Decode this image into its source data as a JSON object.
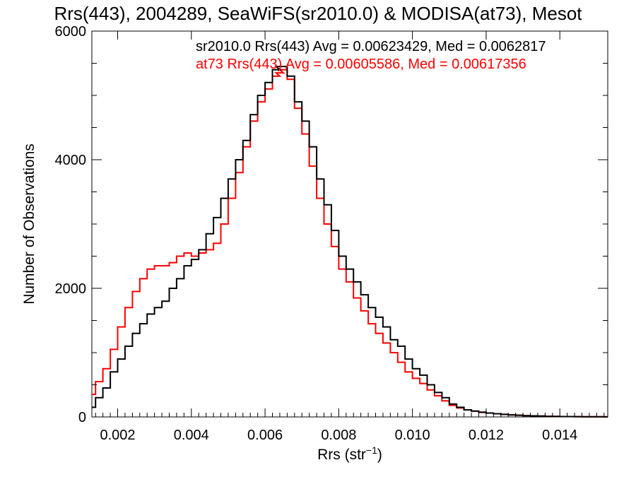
{
  "chart_data": {
    "type": "line",
    "title": "Rrs(443), 2004289, SeaWiFS(sr2010.0) & MODISA(at73), Mesot",
    "xlabel_main": "Rrs (str",
    "xlabel_sup": "−1",
    "xlabel_close": ")",
    "ylabel": "Number of Observations",
    "xlim": [
      0.0013,
      0.0153
    ],
    "ylim": [
      0,
      6000
    ],
    "xticks": [
      0.002,
      0.004,
      0.006,
      0.008,
      0.01,
      0.012,
      0.014
    ],
    "xtick_labels": [
      "0.002",
      "0.004",
      "0.006",
      "0.008",
      "0.010",
      "0.012",
      "0.014"
    ],
    "yticks": [
      0,
      2000,
      4000,
      6000
    ],
    "ytick_labels": [
      "0",
      "2000",
      "4000",
      "6000"
    ],
    "step_histogram": true,
    "grid": false,
    "series": [
      {
        "name": "sr2010.0",
        "legend": "sr2010.0 Rrs(443) Avg = 0.00623429, Med = 0.0062817",
        "color": "#000000",
        "x": [
          0.0013,
          0.0015,
          0.0017,
          0.0019,
          0.0021,
          0.0023,
          0.0025,
          0.0027,
          0.0029,
          0.0031,
          0.0033,
          0.0035,
          0.0037,
          0.0039,
          0.0041,
          0.0043,
          0.0045,
          0.0047,
          0.0049,
          0.0051,
          0.0053,
          0.0055,
          0.0057,
          0.0059,
          0.0061,
          0.0063,
          0.0064,
          0.0065,
          0.0067,
          0.0069,
          0.0071,
          0.0073,
          0.0075,
          0.0077,
          0.0079,
          0.0081,
          0.0083,
          0.0085,
          0.0087,
          0.0089,
          0.0091,
          0.0093,
          0.0095,
          0.0097,
          0.0099,
          0.0101,
          0.0103,
          0.0105,
          0.0107,
          0.0109,
          0.0111,
          0.0113,
          0.0115,
          0.0117,
          0.0119,
          0.0121,
          0.0123,
          0.0125,
          0.0127,
          0.0129,
          0.0131,
          0.0133,
          0.0135,
          0.0137,
          0.0139,
          0.0141,
          0.0143,
          0.0145,
          0.0147,
          0.0149,
          0.0151,
          0.0153
        ],
        "y": [
          150,
          300,
          450,
          700,
          900,
          1100,
          1300,
          1450,
          1600,
          1700,
          1800,
          2000,
          2150,
          2350,
          2450,
          2600,
          2850,
          3100,
          3400,
          3700,
          4000,
          4300,
          4700,
          5000,
          5200,
          5400,
          5450,
          5450,
          5300,
          4900,
          4600,
          4200,
          3700,
          3300,
          2900,
          2500,
          2300,
          2100,
          1900,
          1700,
          1550,
          1400,
          1200,
          1100,
          900,
          750,
          650,
          500,
          380,
          300,
          200,
          150,
          110,
          90,
          75,
          60,
          50,
          40,
          32,
          26,
          20,
          16,
          13,
          10,
          8,
          6,
          5,
          4,
          3,
          2,
          2,
          1
        ]
      },
      {
        "name": "at73",
        "legend": "at73 Rrs(443) Avg = 0.00605586, Med = 0.00617356",
        "color": "#ff0000",
        "x": [
          0.0013,
          0.0015,
          0.0017,
          0.0019,
          0.0021,
          0.0023,
          0.0025,
          0.0027,
          0.0029,
          0.0031,
          0.0033,
          0.0035,
          0.0037,
          0.0039,
          0.0041,
          0.0043,
          0.0045,
          0.0047,
          0.0049,
          0.0051,
          0.0053,
          0.0055,
          0.0057,
          0.0059,
          0.0061,
          0.0063,
          0.0064,
          0.0065,
          0.0067,
          0.0069,
          0.0071,
          0.0073,
          0.0075,
          0.0077,
          0.0079,
          0.0081,
          0.0083,
          0.0085,
          0.0087,
          0.0089,
          0.0091,
          0.0093,
          0.0095,
          0.0097,
          0.0099,
          0.0101,
          0.0103,
          0.0105,
          0.0107,
          0.0109,
          0.0111,
          0.0113,
          0.0115,
          0.0117,
          0.0119,
          0.0121,
          0.0123,
          0.0125,
          0.0127,
          0.0129,
          0.0131,
          0.0133,
          0.0135,
          0.0137,
          0.0139,
          0.0141,
          0.0143,
          0.0145,
          0.0147,
          0.0149,
          0.0151,
          0.0153
        ],
        "y": [
          350,
          550,
          750,
          1050,
          1400,
          1700,
          1950,
          2150,
          2300,
          2350,
          2350,
          2400,
          2500,
          2550,
          2500,
          2550,
          2600,
          2700,
          3000,
          3400,
          3800,
          4200,
          4600,
          4900,
          5100,
          5300,
          5350,
          5400,
          5250,
          4800,
          4400,
          3900,
          3400,
          3000,
          2650,
          2300,
          2100,
          1850,
          1650,
          1450,
          1300,
          1150,
          1000,
          850,
          700,
          600,
          520,
          420,
          330,
          250,
          180,
          140,
          110,
          90,
          70,
          60,
          50,
          40,
          32,
          26,
          20,
          16,
          13,
          10,
          8,
          6,
          5,
          4,
          3,
          2,
          2,
          1
        ]
      }
    ]
  }
}
